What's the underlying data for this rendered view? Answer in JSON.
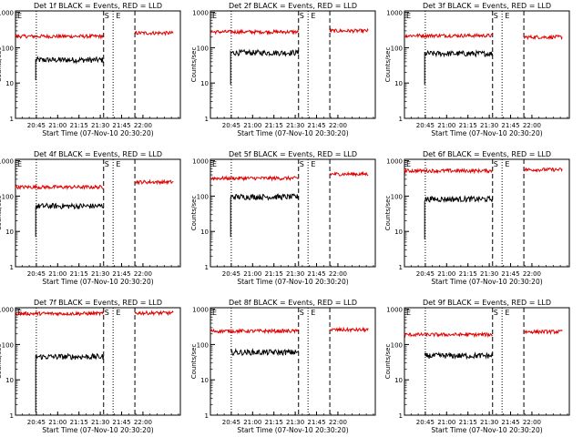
{
  "figure": {
    "common": {
      "xlabel": "Start Time (07-Nov-10 20:30:20)",
      "ylabel": "Counts/sec",
      "x_ticks": [
        "20:45",
        "21:00",
        "21:15",
        "21:30",
        "21:45",
        "22:00"
      ],
      "y_ticks": [
        "1",
        "10",
        "100",
        "1000"
      ],
      "marker_s": "S",
      "marker_e": "E"
    },
    "colors": {
      "events": "#000000",
      "lld": "#e00000",
      "axes": "#000000",
      "background": "#ffffff"
    }
  },
  "chart_data": [
    {
      "type": "line",
      "title": "Det 1f BLACK = Events, RED = LLD",
      "x_unit": "minutes since 20:30:20",
      "xlim": [
        0,
        116
      ],
      "ylim": [
        1,
        1100
      ],
      "y_scale": "log",
      "dotted_lines_x": [
        14.67,
        68.67
      ],
      "dashed_lines_x": [
        62,
        84
      ],
      "s_marker_x": 62,
      "e_marker_x": 72,
      "series": [
        {
          "name": "BLACK = Events",
          "segments": [
            {
              "from": 14.2,
              "to": 62,
              "level": 45,
              "start_level": 12
            }
          ]
        },
        {
          "name": "RED = LLD",
          "segments": [
            {
              "from": 0,
              "to": 62,
              "level": 210
            },
            {
              "from": 84,
              "to": 111,
              "level": 260
            }
          ]
        }
      ]
    },
    {
      "type": "line",
      "title": "Det 2f BLACK = Events, RED = LLD",
      "x_unit": "minutes since 20:30:20",
      "xlim": [
        0,
        116
      ],
      "ylim": [
        1,
        1100
      ],
      "y_scale": "log",
      "dotted_lines_x": [
        14.67,
        68.67
      ],
      "dashed_lines_x": [
        62,
        84
      ],
      "s_marker_x": 62,
      "e_marker_x": 72,
      "series": [
        {
          "name": "BLACK = Events",
          "segments": [
            {
              "from": 14.2,
              "to": 62,
              "level": 72,
              "start_level": 9
            }
          ]
        },
        {
          "name": "RED = LLD",
          "segments": [
            {
              "from": 0,
              "to": 62,
              "level": 280
            },
            {
              "from": 84,
              "to": 111,
              "level": 300
            }
          ]
        }
      ]
    },
    {
      "type": "line",
      "title": "Det 3f BLACK = Events, RED = LLD",
      "x_unit": "minutes since 20:30:20",
      "xlim": [
        0,
        116
      ],
      "ylim": [
        1,
        1100
      ],
      "y_scale": "log",
      "dotted_lines_x": [
        14.67,
        68.67
      ],
      "dashed_lines_x": [
        62,
        84
      ],
      "s_marker_x": 62,
      "e_marker_x": 72,
      "series": [
        {
          "name": "BLACK = Events",
          "segments": [
            {
              "from": 14.2,
              "to": 62,
              "level": 68,
              "start_level": 9
            }
          ]
        },
        {
          "name": "RED = LLD",
          "segments": [
            {
              "from": 0,
              "to": 62,
              "level": 220
            },
            {
              "from": 84,
              "to": 111,
              "level": 200
            }
          ]
        }
      ]
    },
    {
      "type": "line",
      "title": "Det 4f BLACK = Events, RED = LLD",
      "x_unit": "minutes since 20:30:20",
      "xlim": [
        0,
        116
      ],
      "ylim": [
        1,
        1100
      ],
      "y_scale": "log",
      "dotted_lines_x": [
        14.67,
        68.67
      ],
      "dashed_lines_x": [
        62,
        84
      ],
      "s_marker_x": 62,
      "e_marker_x": 72,
      "series": [
        {
          "name": "BLACK = Events",
          "segments": [
            {
              "from": 14.2,
              "to": 62,
              "level": 52,
              "start_level": 7
            }
          ]
        },
        {
          "name": "RED = LLD",
          "segments": [
            {
              "from": 0,
              "to": 62,
              "level": 180
            },
            {
              "from": 84,
              "to": 111,
              "level": 250
            }
          ]
        }
      ]
    },
    {
      "type": "line",
      "title": "Det 5f BLACK = Events, RED = LLD",
      "x_unit": "minutes since 20:30:20",
      "xlim": [
        0,
        116
      ],
      "ylim": [
        1,
        1100
      ],
      "y_scale": "log",
      "dotted_lines_x": [
        14.67,
        68.67
      ],
      "dashed_lines_x": [
        62,
        84
      ],
      "s_marker_x": 62,
      "e_marker_x": 72,
      "series": [
        {
          "name": "BLACK = Events",
          "segments": [
            {
              "from": 14.2,
              "to": 62,
              "level": 95,
              "start_level": 7
            }
          ]
        },
        {
          "name": "RED = LLD",
          "segments": [
            {
              "from": 0,
              "to": 62,
              "level": 320
            },
            {
              "from": 84,
              "to": 111,
              "level": 420
            }
          ]
        }
      ]
    },
    {
      "type": "line",
      "title": "Det 6f BLACK = Events, RED = LLD",
      "x_unit": "minutes since 20:30:20",
      "xlim": [
        0,
        116
      ],
      "ylim": [
        1,
        1100
      ],
      "y_scale": "log",
      "dotted_lines_x": [
        14.67,
        68.67
      ],
      "dashed_lines_x": [
        62,
        84
      ],
      "s_marker_x": 62,
      "e_marker_x": 72,
      "series": [
        {
          "name": "BLACK = Events",
          "segments": [
            {
              "from": 14.2,
              "to": 62,
              "level": 82,
              "start_level": 6
            }
          ]
        },
        {
          "name": "RED = LLD",
          "segments": [
            {
              "from": 0,
              "to": 62,
              "level": 520
            },
            {
              "from": 84,
              "to": 111,
              "level": 560
            }
          ]
        }
      ]
    },
    {
      "type": "line",
      "title": "Det 7f BLACK = Events, RED = LLD",
      "x_unit": "minutes since 20:30:20",
      "xlim": [
        0,
        116
      ],
      "ylim": [
        1,
        1100
      ],
      "y_scale": "log",
      "dotted_lines_x": [
        14.67,
        68.67
      ],
      "dashed_lines_x": [
        62,
        84
      ],
      "s_marker_x": 62,
      "e_marker_x": 72,
      "series": [
        {
          "name": "BLACK = Events",
          "segments": [
            {
              "from": 14.2,
              "to": 62,
              "level": 45,
              "start_level": 1.2
            }
          ]
        },
        {
          "name": "RED = LLD",
          "segments": [
            {
              "from": 0,
              "to": 62,
              "level": 750
            },
            {
              "from": 84,
              "to": 111,
              "level": 780
            }
          ]
        }
      ]
    },
    {
      "type": "line",
      "title": "Det 8f BLACK = Events, RED = LLD",
      "x_unit": "minutes since 20:30:20",
      "xlim": [
        0,
        116
      ],
      "ylim": [
        1,
        1100
      ],
      "y_scale": "log",
      "dotted_lines_x": [
        14.67,
        68.67
      ],
      "dashed_lines_x": [
        62,
        84
      ],
      "s_marker_x": 62,
      "e_marker_x": 72,
      "series": [
        {
          "name": "BLACK = Events",
          "segments": [
            {
              "from": 14.2,
              "to": 62,
              "level": 60,
              "start_level": 60
            }
          ]
        },
        {
          "name": "RED = LLD",
          "segments": [
            {
              "from": 0,
              "to": 62,
              "level": 240
            },
            {
              "from": 84,
              "to": 111,
              "level": 260
            }
          ]
        }
      ]
    },
    {
      "type": "line",
      "title": "Det 9f BLACK = Events, RED = LLD",
      "x_unit": "minutes since 20:30:20",
      "xlim": [
        0,
        116
      ],
      "ylim": [
        1,
        1100
      ],
      "y_scale": "log",
      "dotted_lines_x": [
        14.67,
        68.67
      ],
      "dashed_lines_x": [
        62,
        84
      ],
      "s_marker_x": 62,
      "e_marker_x": 72,
      "series": [
        {
          "name": "BLACK = Events",
          "segments": [
            {
              "from": 14.2,
              "to": 62,
              "level": 48,
              "start_level": 48
            }
          ]
        },
        {
          "name": "RED = LLD",
          "segments": [
            {
              "from": 0,
              "to": 62,
              "level": 190
            },
            {
              "from": 84,
              "to": 111,
              "level": 230
            }
          ]
        }
      ]
    }
  ]
}
